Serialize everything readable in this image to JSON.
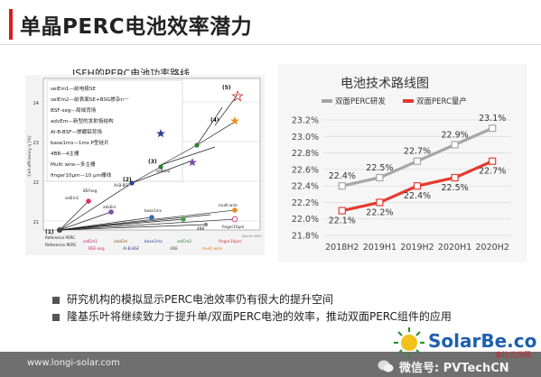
{
  "slide": {
    "title": "单晶PERC电池效率潜力",
    "left_heading": "ISFH的PERC电池功率路线",
    "bullets": [
      "研究机构的模拟显示PERC电池效率仍有很大的提升空间",
      "隆基乐叶将继续致力于提升单/双面PERC电池的效率，推动双面PERC组件的应用"
    ],
    "footer_url": "www.longi-solar.com",
    "wechat_label": "微信号: PVTechCN",
    "brand_text": "SolarBe.com",
    "brand_sub": "索比光伏网",
    "colors": {
      "accent": "#d81e1e",
      "footer": "#6f6f6f",
      "gray_line": "#a6a6a6",
      "red_line": "#e53a2e"
    }
  },
  "isfh_figure": {
    "legend": [
      "selEm1—前电极SE",
      "selEm2—前表面SE+BSG掺杂n⁺⁺",
      "BSF-seg—局域背场",
      "advEm—新型的发射极结构",
      "Al-B-BSF—掺硼铝背场",
      "base1ms—1ms P型硅片",
      "4BB—4主栅",
      "Multi wire—多主栅",
      "finger10μm—10 μm栅线"
    ],
    "y_axis_label": "Cell efficiency η [%]",
    "y_ticks": [
      "24",
      "23",
      "22",
      "21"
    ],
    "stage_labels": [
      "(1)",
      "(2)",
      "(3)",
      "(4)",
      "(5)"
    ],
    "point_labels": [
      "selEm1",
      "BSFseg",
      "advEm",
      "Al-B-BSF",
      "selEm2",
      "multi wire",
      "finger10μm",
      "4BB",
      "base1ms"
    ],
    "x_labels_row1": [
      "Reference\nPERC",
      "selEm1",
      "advEm",
      "base1ms",
      "selEm2",
      "finger10μm"
    ],
    "x_labels_row2": [
      "BSF-seg",
      "Al-B-BSF",
      "4BB",
      "multi wire"
    ],
    "source": "Source: ISFH",
    "ref_label": "Reference PERC"
  },
  "chart_data": {
    "type": "line",
    "title": "电池技术路线图",
    "categories": [
      "2018H2",
      "2019H1",
      "2019H2",
      "2020H1",
      "2020H2"
    ],
    "series": [
      {
        "name": "双面PERC研发",
        "values": [
          22.4,
          22.5,
          22.7,
          22.9,
          23.1
        ],
        "color": "#a6a6a6",
        "labels": [
          "22.4%",
          "22.5%",
          "22.7%",
          "22.9%",
          "23.1%"
        ]
      },
      {
        "name": "双面PERC量产",
        "values": [
          22.1,
          22.2,
          22.4,
          22.5,
          22.7
        ],
        "color": "#e53a2e",
        "labels": [
          "22.1%",
          "22.2%",
          "22.4%",
          "22.5%",
          "22.7%"
        ]
      }
    ],
    "ylim": [
      21.8,
      23.2
    ],
    "yticks": [
      21.8,
      22.0,
      22.2,
      22.4,
      22.6,
      22.8,
      23.0,
      23.2
    ],
    "ytick_labels": [
      "21.8%",
      "22.0%",
      "22.2%",
      "22.4%",
      "22.6%",
      "22.8%",
      "23.0%",
      "23.2%"
    ],
    "grid": true,
    "legend_position": "top"
  }
}
